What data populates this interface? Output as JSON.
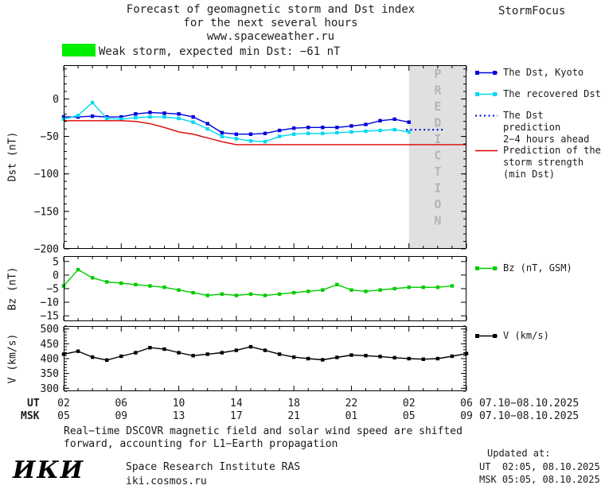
{
  "header": {
    "title_line1": "Forecast of geomagnetic storm and Dst index",
    "title_line2": "for the next several hours",
    "title_line3": "www.spaceweather.ru",
    "brand": "StormFocus"
  },
  "status": {
    "swatch_color": "#00ee00",
    "label": "Weak storm, expected min Dst: −61 nT"
  },
  "chart_data": {
    "type": "line",
    "panels": [
      {
        "id": "dst",
        "ylabel": "Dst (nT)",
        "ylim": [
          -200,
          45
        ],
        "yticks": [
          0,
          -50,
          -100,
          -150,
          -200
        ],
        "yminor": 10,
        "xlim": [
          2,
          30
        ],
        "prediction_band": {
          "start": 26,
          "end": 30,
          "label": "PREDICTION",
          "fill": "#e0e0e0",
          "text_color": "#b5b5b5"
        },
        "series": [
          {
            "name": "The Dst, Kyoto",
            "color": "#0000dd",
            "style": "solid",
            "markers": true,
            "x": [
              2,
              3,
              4,
              5,
              6,
              7,
              8,
              9,
              10,
              11,
              12,
              13,
              14,
              15,
              16,
              17,
              18,
              19,
              20,
              21,
              22,
              23,
              24,
              25,
              26
            ],
            "y": [
              -24,
              -24,
              -23,
              -24,
              -24,
              -20,
              -18,
              -19,
              -20,
              -24,
              -33,
              -45,
              -47,
              -47,
              -46,
              -42,
              -39,
              -38,
              -38,
              -38,
              -36,
              -34,
              -29,
              -27,
              -31
            ]
          },
          {
            "name": "The recovered Dst",
            "color": "#00d9ef",
            "style": "solid",
            "markers": true,
            "x": [
              2,
              3,
              4,
              5,
              6,
              7,
              8,
              9,
              10,
              11,
              12,
              13,
              14,
              15,
              16,
              17,
              18,
              19,
              20,
              21,
              22,
              23,
              24,
              25,
              26
            ],
            "y": [
              -27,
              -22,
              -5,
              -26,
              -27,
              -25,
              -24,
              -24,
              -26,
              -31,
              -40,
              -50,
              -53,
              -56,
              -57,
              -50,
              -47,
              -46,
              -46,
              -45,
              -44,
              -43,
              -42,
              -41,
              -44
            ]
          },
          {
            "name": "The Dst prediction 2−4 hours ahead",
            "color": "#0000dd",
            "style": "dotted",
            "markers": false,
            "x": [
              25.8,
              28.4
            ],
            "y": [
              -41,
              -41
            ]
          },
          {
            "name": "Prediction of the storm strength (min Dst)",
            "color": "#dd0000",
            "style": "solid",
            "markers": false,
            "x": [
              2,
              3,
              4,
              5,
              6,
              7,
              8,
              9,
              10,
              11,
              12,
              13,
              14,
              15,
              16,
              17,
              18,
              19,
              20,
              21,
              22,
              23,
              24,
              25,
              26,
              27,
              28,
              29,
              30
            ],
            "y": [
              -29,
              -29,
              -29,
              -29,
              -29,
              -30,
              -33,
              -38,
              -44,
              -47,
              -52,
              -57,
              -61,
              -61,
              -61,
              -61,
              -61,
              -61,
              -61,
              -61,
              -61,
              -61,
              -61,
              -61,
              -61,
              -61,
              -61,
              -61,
              -61
            ]
          }
        ]
      },
      {
        "id": "bz",
        "ylabel": "Bz (nT)",
        "ylim": [
          -17,
          7
        ],
        "yticks": [
          5,
          0,
          -5,
          -10,
          -15
        ],
        "yminor": null,
        "xlim": [
          2,
          30
        ],
        "series": [
          {
            "name": "Bz (nT, GSM)",
            "color": "#00cc00",
            "style": "solid",
            "markers": true,
            "x": [
              2,
              3,
              4,
              5,
              6,
              7,
              8,
              9,
              10,
              11,
              12,
              13,
              14,
              15,
              16,
              17,
              18,
              19,
              20,
              21,
              22,
              23,
              24,
              25,
              26,
              27,
              28,
              29
            ],
            "y": [
              -4,
              2,
              -1,
              -2.5,
              -3,
              -3.5,
              -4,
              -4.5,
              -5.5,
              -6.5,
              -7.5,
              -7,
              -7.5,
              -7,
              -7.5,
              -7,
              -6.5,
              -6,
              -5.5,
              -3.5,
              -5.5,
              -6,
              -5.5,
              -5,
              -4.5,
              -4.5,
              -4.5,
              -4
            ]
          }
        ]
      },
      {
        "id": "v",
        "ylabel": "V (km/s)",
        "ylim": [
          290,
          510
        ],
        "yticks": [
          500,
          450,
          400,
          350,
          300
        ],
        "yminor": 10,
        "xlim": [
          2,
          30
        ],
        "series": [
          {
            "name": "V (km/s)",
            "color": "#000000",
            "style": "solid",
            "markers": true,
            "x": [
              2,
              3,
              4,
              5,
              6,
              7,
              8,
              9,
              10,
              11,
              12,
              13,
              14,
              15,
              16,
              17,
              18,
              19,
              20,
              21,
              22,
              23,
              24,
              25,
              26,
              27,
              28,
              29,
              30
            ],
            "y": [
              415,
              425,
              405,
              395,
              408,
              420,
              437,
              432,
              420,
              410,
              415,
              420,
              428,
              440,
              428,
              415,
              405,
              400,
              396,
              404,
              412,
              410,
              407,
              403,
              400,
              398,
              400,
              408,
              417
            ]
          }
        ]
      }
    ],
    "xaxis": {
      "ut_label": "UT",
      "msk_label": "MSK",
      "tick_positions": [
        2,
        6,
        10,
        14,
        18,
        22,
        26,
        30
      ],
      "ut_ticks": [
        "02",
        "06",
        "10",
        "14",
        "18",
        "22",
        "02",
        "06"
      ],
      "msk_ticks": [
        "05",
        "09",
        "13",
        "17",
        "21",
        "01",
        "05",
        "09"
      ],
      "ut_date": "07.10−08.10.2025",
      "msk_date": "07.10−08.10.2025"
    }
  },
  "legend": {
    "dst": [
      {
        "lines": [
          "The Dst, Kyoto"
        ],
        "color": "#0000dd",
        "style": "solid-markers"
      },
      {
        "lines": [
          "The recovered Dst"
        ],
        "color": "#00d9ef",
        "style": "solid-markers"
      },
      {
        "lines": [
          "The Dst prediction",
          "2−4 hours ahead"
        ],
        "color": "#0000dd",
        "style": "dotted"
      },
      {
        "lines": [
          "Prediction of the",
          "storm strength",
          "(min Dst)"
        ],
        "color": "#dd0000",
        "style": "solid"
      }
    ],
    "bz": {
      "lines": [
        "Bz (nT, GSM)"
      ],
      "color": "#00cc00",
      "style": "solid-markers"
    },
    "v": {
      "lines": [
        "V (km/s)"
      ],
      "color": "#000000",
      "style": "solid-markers"
    }
  },
  "footer": {
    "note_line1": "Real−time DSCOVR magnetic field and solar wind speed are shifted",
    "note_line2": "forward, accounting for L1−Earth propagation",
    "logo": "ИКИ",
    "institute": "Space Research Institute RAS",
    "site": "iki.cosmos.ru",
    "updated_label": "Updated at:",
    "updated_ut": "UT  02:05, 08.10.2025",
    "updated_msk": "MSK 05:05, 08.10.2025"
  }
}
